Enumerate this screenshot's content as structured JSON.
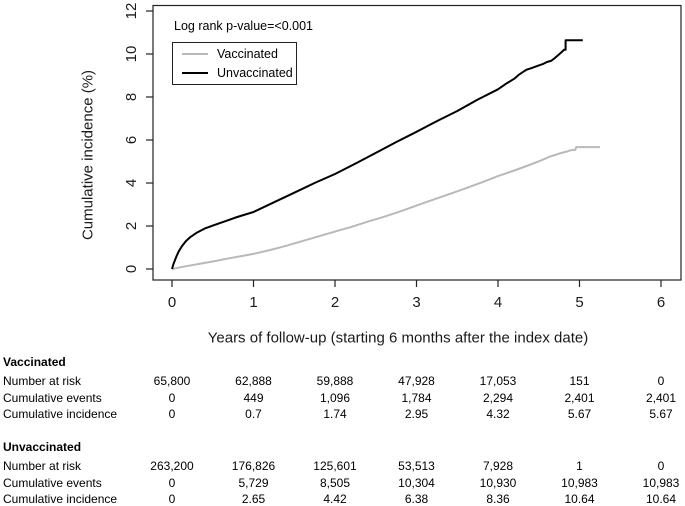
{
  "chart_data": {
    "type": "line",
    "title": "",
    "xlabel": "Years of follow-up (starting 6 months after the index date)",
    "ylabel": "Cumulative incidence (%)",
    "xlim": [
      0,
      6
    ],
    "ylim": [
      0,
      12
    ],
    "x_ticks": [
      0,
      1,
      2,
      3,
      4,
      5,
      6
    ],
    "y_ticks": [
      0,
      2,
      4,
      6,
      8,
      10,
      12
    ],
    "grid": false,
    "legend_position": "top-left",
    "annotation": "Log rank p-value=<0.001",
    "frame_color": "#222222",
    "series": [
      {
        "name": "Vaccinated",
        "color": "#b9b9b9",
        "width": 2,
        "points": [
          [
            0,
            0
          ],
          [
            0.1,
            0.08
          ],
          [
            0.2,
            0.15
          ],
          [
            0.35,
            0.25
          ],
          [
            0.5,
            0.35
          ],
          [
            0.7,
            0.5
          ],
          [
            0.85,
            0.6
          ],
          [
            1,
            0.7
          ],
          [
            1.2,
            0.88
          ],
          [
            1.4,
            1.08
          ],
          [
            1.6,
            1.3
          ],
          [
            1.8,
            1.52
          ],
          [
            2,
            1.74
          ],
          [
            2.2,
            1.96
          ],
          [
            2.4,
            2.2
          ],
          [
            2.6,
            2.43
          ],
          [
            2.8,
            2.68
          ],
          [
            3,
            2.95
          ],
          [
            3.2,
            3.22
          ],
          [
            3.4,
            3.48
          ],
          [
            3.6,
            3.75
          ],
          [
            3.8,
            4.03
          ],
          [
            4,
            4.32
          ],
          [
            4.1,
            4.45
          ],
          [
            4.2,
            4.58
          ],
          [
            4.3,
            4.72
          ],
          [
            4.4,
            4.86
          ],
          [
            4.5,
            5.01
          ],
          [
            4.57,
            5.12
          ],
          [
            4.63,
            5.22
          ],
          [
            4.68,
            5.28
          ],
          [
            4.72,
            5.33
          ],
          [
            4.76,
            5.38
          ],
          [
            4.8,
            5.42
          ],
          [
            4.85,
            5.47
          ],
          [
            4.9,
            5.53
          ],
          [
            4.95,
            5.55
          ],
          [
            4.96,
            5.67
          ],
          [
            5.25,
            5.67
          ]
        ]
      },
      {
        "name": "Unvaccinated",
        "color": "#000000",
        "width": 2,
        "points": [
          [
            0,
            0
          ],
          [
            0.02,
            0.25
          ],
          [
            0.05,
            0.55
          ],
          [
            0.08,
            0.8
          ],
          [
            0.12,
            1.05
          ],
          [
            0.17,
            1.3
          ],
          [
            0.23,
            1.5
          ],
          [
            0.3,
            1.68
          ],
          [
            0.4,
            1.88
          ],
          [
            0.5,
            2.02
          ],
          [
            0.65,
            2.22
          ],
          [
            0.8,
            2.42
          ],
          [
            1,
            2.65
          ],
          [
            1.25,
            3.1
          ],
          [
            1.5,
            3.55
          ],
          [
            1.75,
            4
          ],
          [
            2,
            4.42
          ],
          [
            2.25,
            4.9
          ],
          [
            2.5,
            5.4
          ],
          [
            2.75,
            5.9
          ],
          [
            3,
            6.38
          ],
          [
            3.25,
            6.88
          ],
          [
            3.5,
            7.35
          ],
          [
            3.75,
            7.88
          ],
          [
            4,
            8.36
          ],
          [
            4.1,
            8.62
          ],
          [
            4.2,
            8.85
          ],
          [
            4.25,
            9.02
          ],
          [
            4.3,
            9.15
          ],
          [
            4.35,
            9.27
          ],
          [
            4.4,
            9.33
          ],
          [
            4.45,
            9.4
          ],
          [
            4.5,
            9.47
          ],
          [
            4.55,
            9.53
          ],
          [
            4.6,
            9.63
          ],
          [
            4.65,
            9.68
          ],
          [
            4.7,
            9.82
          ],
          [
            4.73,
            9.92
          ],
          [
            4.76,
            10.02
          ],
          [
            4.79,
            10.12
          ],
          [
            4.81,
            10.2
          ],
          [
            4.83,
            10.2
          ],
          [
            4.83,
            10.64
          ],
          [
            5.04,
            10.64
          ]
        ]
      }
    ]
  },
  "table": {
    "column_years": [
      "0",
      "1",
      "2",
      "3",
      "4",
      "5",
      "6"
    ],
    "sections": [
      {
        "header": "Vaccinated",
        "rows": [
          {
            "label": "Number at risk",
            "values": [
              "65,800",
              "62,888",
              "59,888",
              "47,928",
              "17,053",
              "151",
              "0"
            ]
          },
          {
            "label": "Cumulative events",
            "values": [
              "0",
              "449",
              "1,096",
              "1,784",
              "2,294",
              "2,401",
              "2,401"
            ]
          },
          {
            "label": "Cumulative incidence",
            "values": [
              "0",
              "0.7",
              "1.74",
              "2.95",
              "4.32",
              "5.67",
              "5.67"
            ]
          }
        ]
      },
      {
        "header": "Unvaccinated",
        "rows": [
          {
            "label": "Number at risk",
            "values": [
              "263,200",
              "176,826",
              "125,601",
              "53,513",
              "7,928",
              "1",
              "0"
            ]
          },
          {
            "label": "Cumulative events",
            "values": [
              "0",
              "5,729",
              "8,505",
              "10,304",
              "10,930",
              "10,983",
              "10,983"
            ]
          },
          {
            "label": "Cumulative incidence",
            "values": [
              "0",
              "2.65",
              "4.42",
              "6.38",
              "8.36",
              "10.64",
              "10.64"
            ]
          }
        ]
      }
    ]
  }
}
